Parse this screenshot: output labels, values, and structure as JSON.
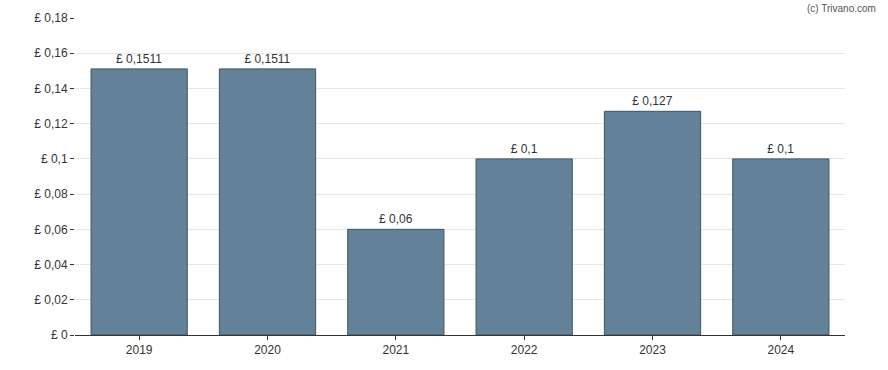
{
  "chart_data": {
    "type": "bar",
    "categories": [
      "2019",
      "2020",
      "2021",
      "2022",
      "2023",
      "2024"
    ],
    "values": [
      0.1511,
      0.1511,
      0.06,
      0.1,
      0.127,
      0.1
    ],
    "value_labels": [
      "£ 0,1511",
      "£ 0,1511",
      "£ 0,06",
      "£ 0,1",
      "£ 0,127",
      "£ 0,1"
    ],
    "data_labels": true,
    "color": "#64819a",
    "ylim": [
      0,
      0.18
    ],
    "yticks": [
      {
        "value": 0,
        "label": "£ 0"
      },
      {
        "value": 0.02,
        "label": "£ 0,02"
      },
      {
        "value": 0.04,
        "label": "£ 0,04"
      },
      {
        "value": 0.06,
        "label": "£ 0,06"
      },
      {
        "value": 0.08,
        "label": "£ 0,08"
      },
      {
        "value": 0.1,
        "label": "£ 0,1"
      },
      {
        "value": 0.12,
        "label": "£ 0,12"
      },
      {
        "value": 0.14,
        "label": "£ 0,14"
      },
      {
        "value": 0.16,
        "label": "£ 0,16"
      },
      {
        "value": 0.18,
        "label": "£ 0,18"
      }
    ],
    "grid": true,
    "annotations": [
      {
        "text": "(c) Trivano.com"
      }
    ]
  }
}
